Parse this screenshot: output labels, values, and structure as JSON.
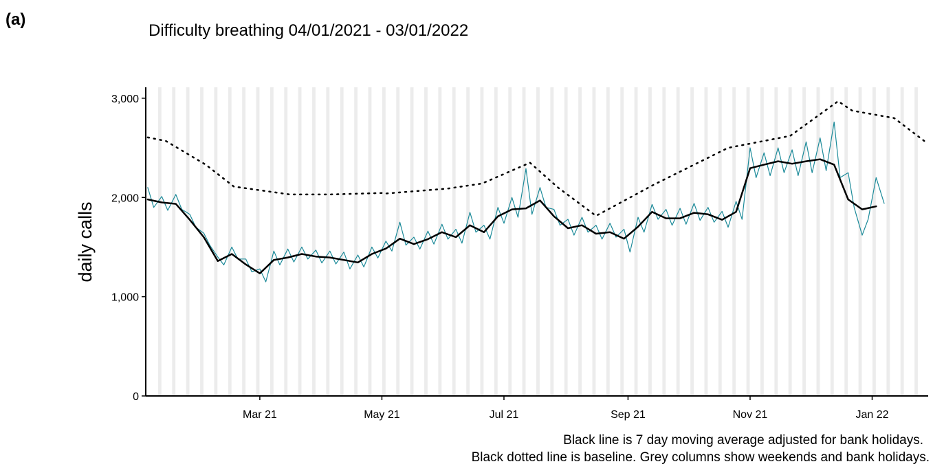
{
  "chart_data": {
    "type": "line",
    "panel_label": "(a)",
    "title": "Difficulty breathing 04/01/2021 - 03/01/2022",
    "y_label": "daily calls",
    "notes": [
      "Black line is 7 day moving average adjusted for bank holidays.",
      "Black dotted line is baseline. Grey columns show weekends and bank holidays."
    ],
    "xlim": [
      2,
      393
    ],
    "xticks": [
      {
        "value": 59,
        "label": "Mar 21"
      },
      {
        "value": 120,
        "label": "May 21"
      },
      {
        "value": 181,
        "label": "Jul 21"
      },
      {
        "value": 243,
        "label": "Sep 21"
      },
      {
        "value": 304,
        "label": "Nov 21"
      },
      {
        "value": 365,
        "label": "Jan 22"
      }
    ],
    "ylim": [
      0,
      3110
    ],
    "yticks": [
      0,
      {
        "value": 1000,
        "label": "1,000"
      },
      {
        "value": 2000,
        "label": "2,000"
      },
      {
        "value": 3000,
        "label": "3,000"
      }
    ],
    "series": [
      {
        "name": "daily calls",
        "color": "#1b8a99",
        "style": "solid",
        "x": [
          3,
          6,
          10,
          13,
          17,
          20,
          24,
          27,
          31,
          34,
          38,
          41,
          45,
          48,
          52,
          55,
          59,
          62,
          66,
          69,
          73,
          76,
          80,
          83,
          87,
          90,
          94,
          97,
          101,
          104,
          108,
          111,
          115,
          118,
          122,
          125,
          129,
          132,
          136,
          139,
          143,
          146,
          150,
          153,
          157,
          160,
          164,
          167,
          171,
          174,
          178,
          181,
          185,
          188,
          192,
          195,
          199,
          202,
          206,
          209,
          213,
          216,
          220,
          223,
          227,
          230,
          234,
          237,
          241,
          244,
          248,
          251,
          255,
          258,
          262,
          265,
          269,
          272,
          276,
          279,
          283,
          286,
          290,
          293,
          297,
          300,
          304,
          307,
          311,
          314,
          318,
          321,
          325,
          328,
          332,
          335,
          339,
          342,
          346,
          349,
          353,
          356,
          360,
          363,
          367,
          371
        ],
        "values": [
          2100,
          1900,
          2010,
          1870,
          2030,
          1880,
          1830,
          1700,
          1640,
          1520,
          1400,
          1320,
          1500,
          1380,
          1380,
          1250,
          1280,
          1150,
          1460,
          1320,
          1480,
          1350,
          1500,
          1380,
          1470,
          1340,
          1460,
          1330,
          1450,
          1280,
          1420,
          1300,
          1500,
          1390,
          1560,
          1460,
          1750,
          1520,
          1600,
          1480,
          1660,
          1530,
          1730,
          1580,
          1680,
          1540,
          1850,
          1650,
          1720,
          1580,
          1900,
          1740,
          2000,
          1800,
          2290,
          1830,
          2100,
          1900,
          1880,
          1720,
          1780,
          1620,
          1800,
          1650,
          1720,
          1580,
          1740,
          1600,
          1680,
          1450,
          1800,
          1650,
          1930,
          1780,
          1880,
          1720,
          1890,
          1730,
          1940,
          1770,
          1900,
          1750,
          1860,
          1700,
          1960,
          1780,
          2500,
          2200,
          2450,
          2220,
          2500,
          2250,
          2480,
          2220,
          2560,
          2250,
          2600,
          2270,
          2760,
          2200,
          2250,
          1900,
          1620,
          1780,
          2200,
          1940
        ]
      },
      {
        "name": "7 day moving average",
        "color": "#000000",
        "style": "solid",
        "x": [
          3,
          10,
          17,
          24,
          31,
          38,
          45,
          52,
          59,
          66,
          73,
          80,
          87,
          94,
          101,
          108,
          115,
          122,
          129,
          136,
          143,
          150,
          157,
          164,
          171,
          178,
          185,
          192,
          199,
          206,
          213,
          220,
          227,
          234,
          241,
          248,
          255,
          262,
          269,
          276,
          283,
          290,
          297,
          304,
          311,
          318,
          325,
          332,
          339,
          346,
          353,
          360,
          367
        ],
        "values": [
          1980,
          1950,
          1935,
          1775,
          1600,
          1360,
          1430,
          1325,
          1235,
          1370,
          1395,
          1430,
          1405,
          1395,
          1370,
          1345,
          1430,
          1485,
          1585,
          1530,
          1580,
          1650,
          1600,
          1720,
          1650,
          1810,
          1880,
          1890,
          1970,
          1810,
          1690,
          1720,
          1635,
          1650,
          1585,
          1705,
          1855,
          1790,
          1790,
          1845,
          1830,
          1775,
          1855,
          2295,
          2330,
          2365,
          2340,
          2365,
          2385,
          2330,
          1980,
          1880,
          1910
        ]
      },
      {
        "name": "baseline",
        "color": "#000000",
        "style": "dotted",
        "x": [
          3,
          12,
          32,
          46,
          74,
          94,
          120,
          122,
          153,
          170,
          194,
          208,
          227,
          256,
          293,
          324,
          348,
          355,
          376,
          391
        ],
        "values": [
          2605,
          2570,
          2330,
          2110,
          2030,
          2030,
          2045,
          2040,
          2090,
          2140,
          2350,
          2100,
          1815,
          2130,
          2500,
          2620,
          2970,
          2875,
          2800,
          2570
        ]
      }
    ]
  }
}
